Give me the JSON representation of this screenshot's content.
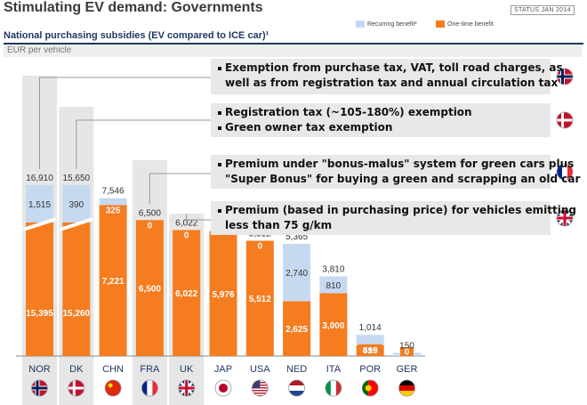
{
  "page": {
    "title": "Stimulating EV demand: Governments",
    "status": "STATUS JAN 2014",
    "subtitle": "National purchasing subsidies (EV compared to ICE car)¹",
    "unit": "EUR per vehicle"
  },
  "legend": [
    {
      "label": "Recurring benefit²",
      "color": "#c6d9f1"
    },
    {
      "label": "One-time benefit",
      "color": "#f57c1f"
    }
  ],
  "callouts": [
    {
      "lines": [
        "Exemption from purchase tax, VAT, toll road charges, as",
        "well as from registration tax and annual circulation tax"
      ],
      "bullets": [
        0
      ],
      "flag": "norway-flag-icon"
    },
    {
      "lines": [
        "Registration tax (~105-180%) exemption",
        "Green owner tax exemption"
      ],
      "bullets": [
        0,
        1
      ],
      "flag": "denmark-flag-icon"
    },
    {
      "lines": [
        "Premium under \"bonus-malus\" system for green cars plus",
        "\"Super Bonus\" for buying a green and scrapping an old car"
      ],
      "bullets": [
        0
      ],
      "flag": "france-flag-icon"
    },
    {
      "lines": [
        "Premium (based in purchasing price) for vehicles emitting",
        "less than 75 g/km"
      ],
      "bullets": [
        0
      ],
      "flag": "uk-flag-icon"
    }
  ],
  "chart_data": {
    "type": "bar",
    "stacked": true,
    "categories": [
      "NOR",
      "DK",
      "CHN",
      "FRA",
      "UK",
      "JAP",
      "USA",
      "NED",
      "ITA",
      "POR",
      "GER"
    ],
    "series": [
      {
        "name": "One-time benefit",
        "color": "#f57c1f",
        "values": [
          15395,
          15260,
          7221,
          6500,
          6022,
          5976,
          5512,
          2625,
          3000,
          519,
          0
        ]
      },
      {
        "name": "Recurring benefit²",
        "color": "#c6d9f1",
        "values": [
          1515,
          390,
          325,
          0,
          0,
          0,
          0,
          2740,
          810,
          495,
          150
        ]
      }
    ],
    "totals": [
      16910,
      15650,
      7546,
      6500,
      6022,
      5976,
      5512,
      5365,
      3810,
      1014,
      150
    ],
    "bottom_labels": [
      "15,395",
      "15,260",
      "7,221",
      "6,500",
      "6,022",
      "5,976",
      "5,512",
      "2,625",
      "3,000",
      "519",
      "0"
    ],
    "top_labels": [
      "1,515",
      "390",
      "325",
      "0",
      "0",
      "",
      "0",
      "2,740",
      "810",
      "495",
      ""
    ],
    "total_labels": [
      "16,910",
      "15,650",
      "7,546",
      "6,500",
      "6,022",
      "5,976",
      "5,512",
      "5,365",
      "3,810",
      "1,014",
      "150"
    ],
    "axis_break": [
      "NOR",
      "DK"
    ],
    "highlighted": [
      "NOR",
      "DK",
      "FRA",
      "UK"
    ],
    "flags": [
      "norway-flag-icon",
      "denmark-flag-icon",
      "china-flag-icon",
      "france-flag-icon",
      "uk-flag-icon",
      "japan-flag-icon",
      "usa-flag-icon",
      "netherlands-flag-icon",
      "italy-flag-icon",
      "portugal-flag-icon",
      "germany-flag-icon"
    ],
    "ylabel": "EUR per vehicle",
    "grid": false,
    "legend_position": "top-right"
  }
}
